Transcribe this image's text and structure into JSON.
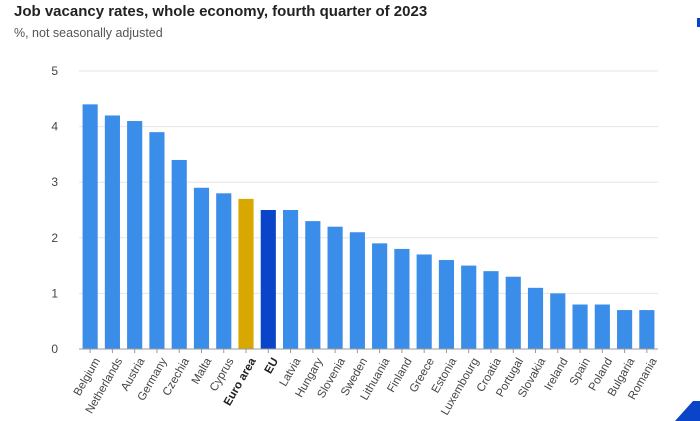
{
  "header": {
    "title": "Job vacancy rates, whole economy, fourth quarter of 2023",
    "subtitle": "%, not seasonally adjusted"
  },
  "chart_data": {
    "type": "bar",
    "title": "Job vacancy rates, whole economy, fourth quarter of 2023",
    "subtitle": "%, not seasonally adjusted",
    "xlabel": "",
    "ylabel": "",
    "ylim": [
      0,
      5
    ],
    "yticks": [
      0,
      1,
      2,
      3,
      4,
      5
    ],
    "grid": true,
    "categories": [
      "Belgium",
      "Netherlands",
      "Austria",
      "Germany",
      "Czechia",
      "Malta",
      "Cyprus",
      "Euro area",
      "EU",
      "Latvia",
      "Hungary",
      "Slovenia",
      "Sweden",
      "Lithuania",
      "Finland",
      "Greece",
      "Estonia",
      "Luxembourg",
      "Croatia",
      "Portugal",
      "Slovakia",
      "Ireland",
      "Spain",
      "Poland",
      "Bulgaria",
      "Romania"
    ],
    "values": [
      4.4,
      4.2,
      4.1,
      3.9,
      3.4,
      2.9,
      2.8,
      2.7,
      2.5,
      2.5,
      2.3,
      2.2,
      2.1,
      1.9,
      1.8,
      1.7,
      1.6,
      1.5,
      1.4,
      1.3,
      1.1,
      1.0,
      0.8,
      0.8,
      0.7,
      0.7
    ],
    "highlight": {
      "Euro area": "#d8a800",
      "EU": "#0a44c9"
    },
    "bold_labels": [
      "Euro area",
      "EU"
    ],
    "colors": {
      "default": "#3a8de8",
      "euro_area": "#d8a800",
      "eu": "#0a44c9",
      "grid": "#e6e6e6",
      "axis": "#999999",
      "text": "#444444"
    }
  }
}
